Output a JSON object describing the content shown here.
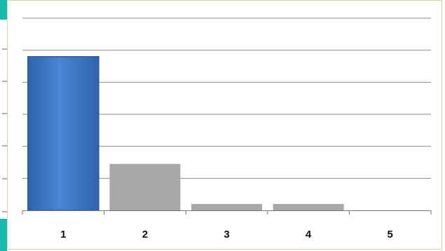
{
  "chart_data": {
    "type": "bar",
    "categories": [
      "1",
      "2",
      "3",
      "4",
      "5"
    ],
    "values": [
      4.8,
      1.45,
      0.2,
      0.2,
      0
    ],
    "ylim": [
      0,
      6
    ],
    "grid": true,
    "title": "",
    "xlabel": "",
    "ylabel": "",
    "colors": {
      "highlight_bar": "#3f77c4",
      "highlight_bar_light": "#5590d8",
      "highlight_bar_border": "#2a5a9c",
      "other_bar": "#a8a8a8",
      "gridline": "#8c8c8c",
      "frame": "#cfd9a8",
      "teal_accent": "#19b9b0"
    }
  }
}
